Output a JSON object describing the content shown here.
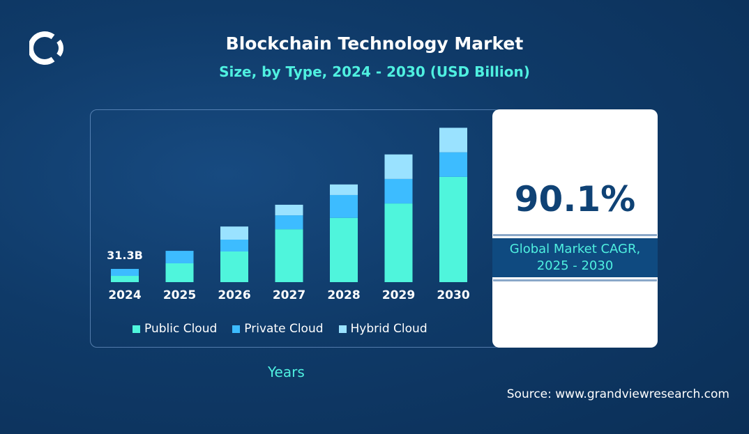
{
  "header": {
    "title": "Blockchain Technology Market",
    "subtitle": "Size, by Type, 2024 - 2030 (USD Billion)"
  },
  "colors": {
    "public": "#4ff5dc",
    "private": "#3dbcff",
    "hybrid": "#9ae2ff",
    "background": "#0f3a68",
    "cagr_text": "#0f4275"
  },
  "logo": {
    "icon": "grand-view-research-logo"
  },
  "chart_data": {
    "type": "bar",
    "stacked": true,
    "title": "Blockchain Technology Market Size, by Type, 2024 - 2030 (USD Billion)",
    "xlabel": "Years",
    "categories": [
      "2024",
      "2025",
      "2026",
      "2027",
      "2028",
      "2029",
      "2030"
    ],
    "series": [
      {
        "name": "Public Cloud",
        "values": [
          14.8,
          44.5,
          72.5,
          125,
          152,
          186,
          249
        ]
      },
      {
        "name": "Private Cloud",
        "values": [
          16.5,
          29.5,
          28,
          33,
          54,
          58,
          58
        ]
      },
      {
        "name": "Hybrid Cloud",
        "values": [
          0,
          0,
          31,
          25,
          25,
          58,
          58
        ]
      }
    ],
    "annotations": [
      {
        "category": "2024",
        "label": "31.3B"
      }
    ],
    "ylim": [
      0,
      380
    ],
    "grid": false,
    "legend": "bottom"
  },
  "cagr": {
    "value": "90.1%",
    "label_line1": "Global Market CAGR,",
    "label_line2": "2025 - 2030"
  },
  "source": "Source: www.grandviewresearch.com"
}
